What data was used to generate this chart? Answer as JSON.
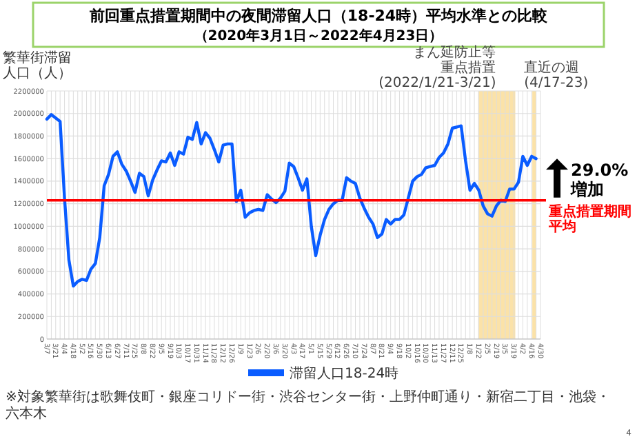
{
  "chart_data": {
    "type": "line",
    "title": "前回重点措置期間中の夜間滞留人口（18-24時）平均水準との比較",
    "subtitle": "（2020年3月1日～2022年4月23日）",
    "ylabel": "繁華街滞留人口（人）",
    "x": [
      "2020-03-07",
      "2020-03-14",
      "2020-03-21",
      "2020-03-28",
      "2020-04-04",
      "2020-04-11",
      "2020-04-18",
      "2020-04-25",
      "2020-05-02",
      "2020-05-09",
      "2020-05-16",
      "2020-05-23",
      "2020-05-30",
      "2020-06-06",
      "2020-06-13",
      "2020-06-20",
      "2020-06-27",
      "2020-07-04",
      "2020-07-11",
      "2020-07-18",
      "2020-07-25",
      "2020-08-01",
      "2020-08-08",
      "2020-08-15",
      "2020-08-22",
      "2020-08-29",
      "2020-09-05",
      "2020-09-12",
      "2020-09-19",
      "2020-09-26",
      "2020-10-03",
      "2020-10-10",
      "2020-10-17",
      "2020-10-24",
      "2020-10-31",
      "2020-11-07",
      "2020-11-14",
      "2020-11-21",
      "2020-11-28",
      "2020-12-05",
      "2020-12-12",
      "2020-12-19",
      "2020-12-26",
      "2021-01-02",
      "2021-01-09",
      "2021-01-16",
      "2021-01-23",
      "2021-01-30",
      "2021-02-06",
      "2021-02-13",
      "2021-02-20",
      "2021-02-27",
      "2021-03-06",
      "2021-03-13",
      "2021-03-20",
      "2021-03-27",
      "2021-04-03",
      "2021-04-10",
      "2021-04-17",
      "2021-04-24",
      "2021-05-01",
      "2021-05-08",
      "2021-05-15",
      "2021-05-22",
      "2021-05-29",
      "2021-06-05",
      "2021-06-12",
      "2021-06-19",
      "2021-06-26",
      "2021-07-03",
      "2021-07-10",
      "2021-07-17",
      "2021-07-24",
      "2021-07-31",
      "2021-08-07",
      "2021-08-14",
      "2021-08-21",
      "2021-08-28",
      "2021-09-04",
      "2021-09-11",
      "2021-09-18",
      "2021-09-25",
      "2021-10-02",
      "2021-10-09",
      "2021-10-16",
      "2021-10-23",
      "2021-10-30",
      "2021-11-06",
      "2021-11-13",
      "2021-11-20",
      "2021-11-27",
      "2021-12-04",
      "2021-12-11",
      "2021-12-18",
      "2021-12-25",
      "2022-01-01",
      "2022-01-08",
      "2022-01-15",
      "2022-01-22",
      "2022-01-29",
      "2022-02-05",
      "2022-02-12",
      "2022-02-19",
      "2022-02-26",
      "2022-03-05",
      "2022-03-12",
      "2022-03-19",
      "2022-03-26",
      "2022-04-02",
      "2022-04-09",
      "2022-04-16",
      "2022-04-23"
    ],
    "series": [
      {
        "name": "滞留人口18-24時",
        "color": "#0a5cff",
        "values": [
          1950000,
          1990000,
          1960000,
          1930000,
          1250000,
          700000,
          470000,
          510000,
          530000,
          520000,
          620000,
          670000,
          900000,
          1360000,
          1460000,
          1620000,
          1660000,
          1550000,
          1490000,
          1400000,
          1300000,
          1470000,
          1440000,
          1270000,
          1410000,
          1500000,
          1580000,
          1570000,
          1650000,
          1540000,
          1660000,
          1640000,
          1790000,
          1770000,
          1920000,
          1730000,
          1830000,
          1780000,
          1680000,
          1570000,
          1720000,
          1730000,
          1730000,
          1220000,
          1320000,
          1080000,
          1120000,
          1140000,
          1150000,
          1140000,
          1280000,
          1240000,
          1210000,
          1250000,
          1310000,
          1560000,
          1530000,
          1430000,
          1320000,
          1420000,
          1000000,
          740000,
          920000,
          1060000,
          1150000,
          1200000,
          1230000,
          1230000,
          1430000,
          1400000,
          1380000,
          1250000,
          1160000,
          1080000,
          1020000,
          900000,
          930000,
          1060000,
          1020000,
          1060000,
          1060000,
          1100000,
          1250000,
          1400000,
          1440000,
          1460000,
          1520000,
          1530000,
          1540000,
          1610000,
          1650000,
          1730000,
          1870000,
          1880000,
          1890000,
          1580000,
          1320000,
          1380000,
          1320000,
          1180000,
          1110000,
          1090000,
          1180000,
          1230000,
          1220000,
          1330000,
          1330000,
          1390000,
          1620000,
          1540000,
          1620000,
          1600000
        ]
      }
    ],
    "xlim": [
      "2020-03-07",
      "2022-04-30"
    ],
    "xticks": [
      {
        "value": "2020-03-07",
        "label": "3/7"
      },
      {
        "value": "2020-03-14",
        "label": null
      },
      {
        "value": "2020-03-21",
        "label": "3/21"
      },
      {
        "value": "2020-03-28",
        "label": null
      },
      {
        "value": "2020-04-04",
        "label": "4/4"
      },
      {
        "value": "2020-04-11",
        "label": null
      },
      {
        "value": "2020-04-18",
        "label": "4/18"
      },
      {
        "value": "2020-04-25",
        "label": null
      },
      {
        "value": "2020-05-02",
        "label": "5/2"
      },
      {
        "value": "2020-05-09",
        "label": null
      },
      {
        "value": "2020-05-16",
        "label": "5/16"
      },
      {
        "value": "2020-05-23",
        "label": null
      },
      {
        "value": "2020-05-30",
        "label": "5/30"
      },
      {
        "value": "2020-06-06",
        "label": null
      },
      {
        "value": "2020-06-13",
        "label": "6/13"
      },
      {
        "value": "2020-06-20",
        "label": null
      },
      {
        "value": "2020-06-27",
        "label": "6/27"
      },
      {
        "value": "2020-07-04",
        "label": null
      },
      {
        "value": "2020-07-11",
        "label": "7/11"
      },
      {
        "value": "2020-07-18",
        "label": null
      },
      {
        "value": "2020-07-25",
        "label": "7/25"
      },
      {
        "value": "2020-08-01",
        "label": null
      },
      {
        "value": "2020-08-08",
        "label": "8/8"
      },
      {
        "value": "2020-08-15",
        "label": null
      },
      {
        "value": "2020-08-22",
        "label": "8/22"
      },
      {
        "value": "2020-08-29",
        "label": null
      },
      {
        "value": "2020-09-05",
        "label": "9/5"
      },
      {
        "value": "2020-09-12",
        "label": null
      },
      {
        "value": "2020-09-19",
        "label": "9/19"
      },
      {
        "value": "2020-09-26",
        "label": null
      },
      {
        "value": "2020-10-03",
        "label": "10/3"
      },
      {
        "value": "2020-10-10",
        "label": null
      },
      {
        "value": "2020-10-17",
        "label": "10/17"
      },
      {
        "value": "2020-10-24",
        "label": null
      },
      {
        "value": "2020-10-31",
        "label": "10/31"
      },
      {
        "value": "2020-11-07",
        "label": null
      },
      {
        "value": "2020-11-14",
        "label": "11/14"
      },
      {
        "value": "2020-11-21",
        "label": null
      },
      {
        "value": "2020-11-28",
        "label": "11/28"
      },
      {
        "value": "2020-12-05",
        "label": null
      },
      {
        "value": "2020-12-12",
        "label": "12/12"
      },
      {
        "value": "2020-12-19",
        "label": null
      },
      {
        "value": "2020-12-26",
        "label": "12/26"
      },
      {
        "value": "2021-01-02",
        "label": null
      },
      {
        "value": "2021-01-09",
        "label": "1/9"
      },
      {
        "value": "2021-01-16",
        "label": null
      },
      {
        "value": "2021-01-23",
        "label": "1/23"
      },
      {
        "value": "2021-01-30",
        "label": null
      },
      {
        "value": "2021-02-06",
        "label": "2/6"
      },
      {
        "value": "2021-02-13",
        "label": null
      },
      {
        "value": "2021-02-20",
        "label": "2/20"
      },
      {
        "value": "2021-02-27",
        "label": null
      },
      {
        "value": "2021-03-06",
        "label": "3/6"
      },
      {
        "value": "2021-03-13",
        "label": null
      },
      {
        "value": "2021-03-20",
        "label": "3/20"
      },
      {
        "value": "2021-03-27",
        "label": null
      },
      {
        "value": "2021-04-03",
        "label": "4/3"
      },
      {
        "value": "2021-04-10",
        "label": null
      },
      {
        "value": "2021-04-17",
        "label": "4/17"
      },
      {
        "value": "2021-04-24",
        "label": null
      },
      {
        "value": "2021-05-01",
        "label": "5/1"
      },
      {
        "value": "2021-05-08",
        "label": null
      },
      {
        "value": "2021-05-15",
        "label": "5/15"
      },
      {
        "value": "2021-05-22",
        "label": null
      },
      {
        "value": "2021-05-29",
        "label": "5/29"
      },
      {
        "value": "2021-06-05",
        "label": null
      },
      {
        "value": "2021-06-12",
        "label": "6/12"
      },
      {
        "value": "2021-06-19",
        "label": null
      },
      {
        "value": "2021-06-26",
        "label": "6/26"
      },
      {
        "value": "2021-07-03",
        "label": null
      },
      {
        "value": "2021-07-10",
        "label": "7/10"
      },
      {
        "value": "2021-07-17",
        "label": null
      },
      {
        "value": "2021-07-24",
        "label": "7/24"
      },
      {
        "value": "2021-07-31",
        "label": null
      },
      {
        "value": "2021-08-07",
        "label": "8/7"
      },
      {
        "value": "2021-08-14",
        "label": null
      },
      {
        "value": "2021-08-21",
        "label": "8/21"
      },
      {
        "value": "2021-08-28",
        "label": null
      },
      {
        "value": "2021-09-04",
        "label": "9/4"
      },
      {
        "value": "2021-09-11",
        "label": null
      },
      {
        "value": "2021-09-18",
        "label": "9/18"
      },
      {
        "value": "2021-09-25",
        "label": null
      },
      {
        "value": "2021-10-02",
        "label": "10/2"
      },
      {
        "value": "2021-10-09",
        "label": null
      },
      {
        "value": "2021-10-16",
        "label": "10/16"
      },
      {
        "value": "2021-10-23",
        "label": null
      },
      {
        "value": "2021-10-30",
        "label": "10/30"
      },
      {
        "value": "2021-11-06",
        "label": null
      },
      {
        "value": "2021-11-13",
        "label": "11/13"
      },
      {
        "value": "2021-11-20",
        "label": null
      },
      {
        "value": "2021-11-27",
        "label": "11/27"
      },
      {
        "value": "2021-12-04",
        "label": null
      },
      {
        "value": "2021-12-11",
        "label": "12/11"
      },
      {
        "value": "2021-12-18",
        "label": null
      },
      {
        "value": "2021-12-25",
        "label": "12/25"
      },
      {
        "value": "2022-01-01",
        "label": null
      },
      {
        "value": "2022-01-08",
        "label": "1/8"
      },
      {
        "value": "2022-01-15",
        "label": null
      },
      {
        "value": "2022-01-22",
        "label": "1/22"
      },
      {
        "value": "2022-01-29",
        "label": null
      },
      {
        "value": "2022-02-05",
        "label": "2/5"
      },
      {
        "value": "2022-02-12",
        "label": null
      },
      {
        "value": "2022-02-19",
        "label": "2/19"
      },
      {
        "value": "2022-02-26",
        "label": null
      },
      {
        "value": "2022-03-05",
        "label": "3/5"
      },
      {
        "value": "2022-03-12",
        "label": null
      },
      {
        "value": "2022-03-19",
        "label": "3/19"
      },
      {
        "value": "2022-03-26",
        "label": null
      },
      {
        "value": "2022-04-02",
        "label": "4/2"
      },
      {
        "value": "2022-04-09",
        "label": null
      },
      {
        "value": "2022-04-16",
        "label": "4/16"
      },
      {
        "value": "2022-04-23",
        "label": null
      },
      {
        "value": "2022-04-30",
        "label": "4/30"
      }
    ],
    "ylim": [
      0,
      2200000
    ],
    "yticks": [
      0,
      200000,
      400000,
      600000,
      800000,
      1000000,
      1200000,
      1400000,
      1600000,
      1800000,
      2000000,
      2200000
    ],
    "grid": true,
    "legend": "bottom",
    "marker": "none",
    "line_style": "solid",
    "ref_lines": [
      {
        "axis": "y",
        "value": 1230000,
        "label": "重点措置期間平均",
        "color": "#ff0000"
      }
    ],
    "bands": [
      {
        "axis": "x",
        "from": "2022-01-21",
        "to": "2022-03-21",
        "label": "まん延防止等重点措置(2022/1/21-3/21)",
        "color": "#fbe2a8"
      },
      {
        "axis": "x",
        "from": "2022-04-17",
        "to": "2022-04-23",
        "label": "直近の週(4/17-23)",
        "color": "#fbe2a8"
      }
    ],
    "annotations": [
      "29.0%",
      "増加",
      "※対象繁華街は歌舞伎町・銀座コリドー街・渋谷センター街・上野仲町通り・新宿二丁目・池袋・六本木",
      "4"
    ]
  }
}
